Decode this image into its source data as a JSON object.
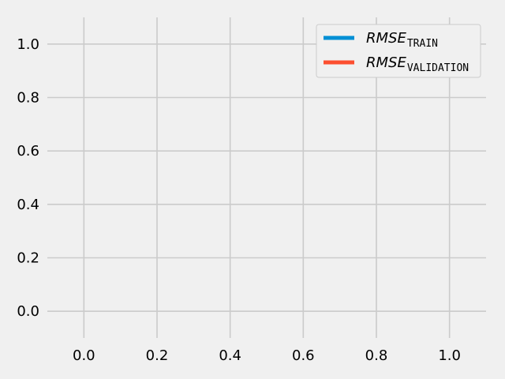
{
  "chart_data": {
    "type": "line",
    "title": "",
    "xlabel": "",
    "ylabel": "",
    "xlim": [
      -0.1,
      1.1
    ],
    "ylim": [
      -0.1,
      1.1
    ],
    "x_ticks": [
      0.0,
      0.2,
      0.4,
      0.6,
      0.8,
      1.0
    ],
    "y_ticks": [
      0.0,
      0.2,
      0.4,
      0.6,
      0.8,
      1.0
    ],
    "x_tick_labels": [
      "0.0",
      "0.2",
      "0.4",
      "0.6",
      "0.8",
      "1.0"
    ],
    "y_tick_labels": [
      "0.0",
      "0.2",
      "0.4",
      "0.6",
      "0.8",
      "1.0"
    ],
    "grid": true,
    "legend_position": "upper right",
    "series": [
      {
        "name": "RMSE_TRAIN",
        "label_main": "RMSE",
        "label_sub": "TRAIN",
        "color": "#008fd5",
        "x": [],
        "y": []
      },
      {
        "name": "RMSE_VALIDATION",
        "label_main": "RMSE",
        "label_sub": "VALIDATION",
        "color": "#fc4f30",
        "x": [],
        "y": []
      }
    ],
    "colors": {
      "background": "#f0f0f0",
      "grid": "#cbcbcb"
    }
  }
}
